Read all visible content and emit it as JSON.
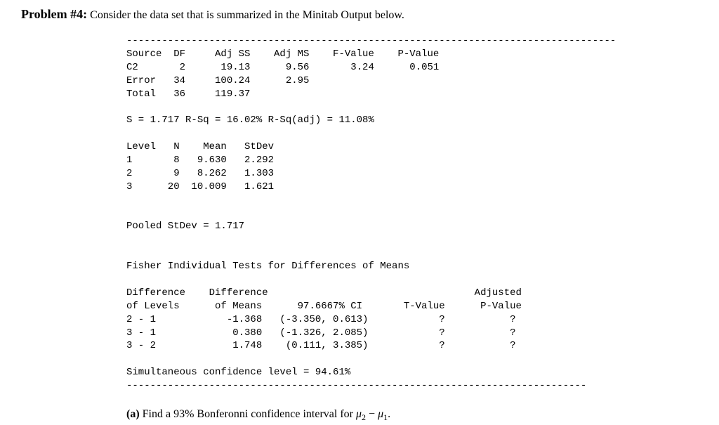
{
  "heading": {
    "label": "Problem #4:",
    "text": "Consider the data set that is summarized in the Minitab Output below."
  },
  "output": {
    "font_family": "Courier New",
    "font_size_pt": 11,
    "text_color": "#000000",
    "background_color": "#ffffff",
    "dash_line": "-----------------------------------------------------------------------------------",
    "anova": {
      "columns": [
        "Source",
        "DF",
        "Adj SS",
        "Adj MS",
        "F-Value",
        "P-Value"
      ],
      "rows": [
        {
          "Source": "C2",
          "DF": 2,
          "Adj SS": 19.13,
          "Adj MS": 9.56,
          "F-Value": 3.24,
          "P-Value": 0.051
        },
        {
          "Source": "Error",
          "DF": 34,
          "Adj SS": 100.24,
          "Adj MS": 2.95,
          "F-Value": null,
          "P-Value": null
        },
        {
          "Source": "Total",
          "DF": 36,
          "Adj SS": 119.37,
          "Adj MS": null,
          "F-Value": null,
          "P-Value": null
        }
      ]
    },
    "summary_line": "S = 1.717 R-Sq = 16.02% R-Sq(adj) = 11.08%",
    "levels": {
      "columns": [
        "Level",
        "N",
        "Mean",
        "StDev"
      ],
      "rows": [
        {
          "Level": 1,
          "N": 8,
          "Mean": 9.63,
          "StDev": 2.292
        },
        {
          "Level": 2,
          "N": 9,
          "Mean": 8.262,
          "StDev": 1.303
        },
        {
          "Level": 3,
          "N": 20,
          "Mean": 10.009,
          "StDev": 1.621
        }
      ]
    },
    "pooled": "Pooled StDev = 1.717",
    "fisher_title": "Fisher Individual Tests for Differences of Means",
    "fisher": {
      "columns": [
        "Difference of Levels",
        "Difference of Means",
        "97.6667% CI",
        "T-Value",
        "Adjusted P-Value"
      ],
      "rows": [
        {
          "pair": "2 - 1",
          "diff": -1.368,
          "ci": "(-3.350, 0.613)",
          "t": "?",
          "p": "?"
        },
        {
          "pair": "3 - 1",
          "diff": 0.38,
          "ci": "(-1.326, 2.085)",
          "t": "?",
          "p": "?"
        },
        {
          "pair": "3 - 2",
          "diff": 1.748,
          "ci": "(0.111, 3.385)",
          "t": "?",
          "p": "?"
        }
      ]
    },
    "simul": "Simultaneous confidence level = 94.61%"
  },
  "question_a": {
    "label": "(a)",
    "prefix": "Find a 93% Bonferonni confidence interval for ",
    "mu2": "μ",
    "sub2": "2",
    "minus": " − ",
    "mu1": "μ",
    "sub1": "1",
    "suffix": "."
  },
  "lines": {
    "l00": "-----------------------------------------------------------------------------------",
    "l01": "Source  DF     Adj SS    Adj MS    F-Value    P-Value",
    "l02": "C2       2      19.13      9.56       3.24      0.051",
    "l03": "Error   34     100.24      2.95",
    "l04": "Total   36     119.37",
    "l05": "",
    "l06": "S = 1.717 R-Sq = 16.02% R-Sq(adj) = 11.08%",
    "l07": "",
    "l08": "Level   N    Mean   StDev",
    "l09": "1       8   9.630   2.292",
    "l10": "2       9   8.262   1.303",
    "l11": "3      20  10.009   1.621",
    "l12": "",
    "l13": "",
    "l14": "Pooled StDev = 1.717",
    "l15": "",
    "l16": "",
    "l17": "Fisher Individual Tests for Differences of Means",
    "l18": "",
    "l19": "Difference    Difference                                   Adjusted",
    "l20": "of Levels      of Means      97.6667% CI       T-Value      P-Value",
    "l21": "2 - 1            -1.368   (-3.350, 0.613)            ?           ?",
    "l22": "3 - 1             0.380   (-1.326, 2.085)            ?           ?",
    "l23": "3 - 2             1.748    (0.111, 3.385)            ?           ?",
    "l24": "",
    "l25": "Simultaneous confidence level = 94.61%",
    "l26": "------------------------------------------------------------------------------"
  }
}
